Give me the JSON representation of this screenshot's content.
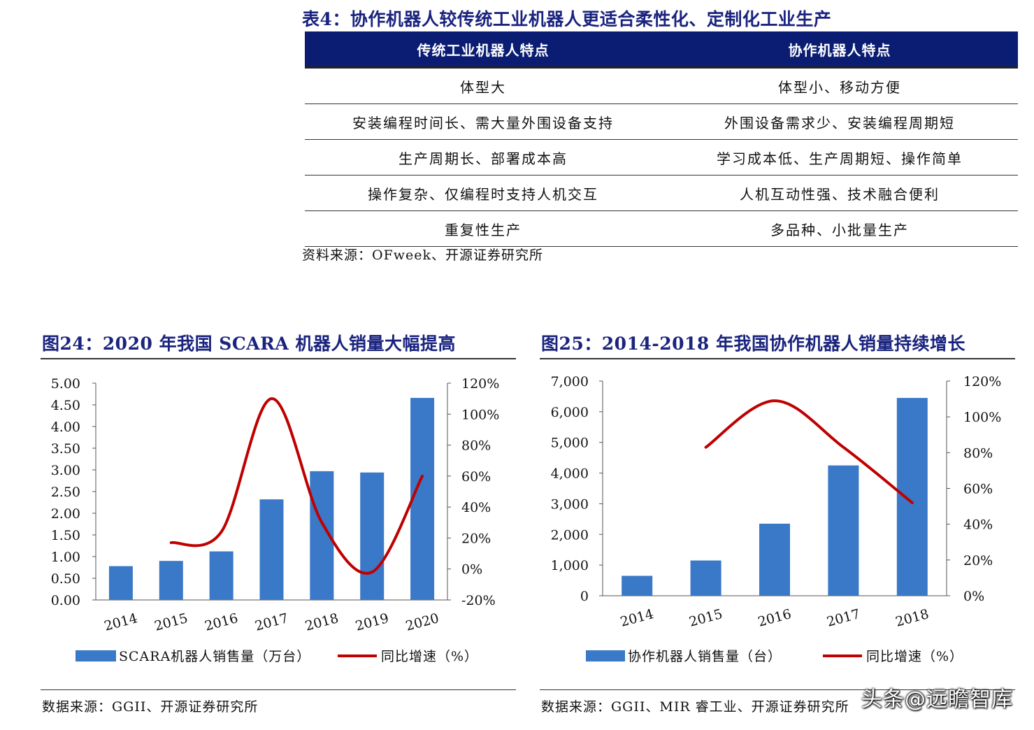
{
  "table4": {
    "title": "表4：协作机器人较传统工业机器人更适合柔性化、定制化工业生产",
    "headers": [
      "传统工业机器人特点",
      "协作机器人特点"
    ],
    "rows": [
      [
        "体型大",
        "体型小、移动方便"
      ],
      [
        "安装编程时间长、需大量外围设备支持",
        "外围设备需求少、安装编程周期短"
      ],
      [
        "生产周期长、部署成本高",
        "学习成本低、生产周期短、操作简单"
      ],
      [
        "操作复杂、仅编程时支持人机交互",
        "人机互动性强、技术融合便利"
      ],
      [
        "重复性生产",
        "多品种、小批量生产"
      ]
    ],
    "source": "资料来源：OFweek、开源证券研究所"
  },
  "fig24": {
    "title": "图24：2020 年我国 SCARA 机器人销量大幅提高",
    "source": "数据来源：GGII、开源证券研究所"
  },
  "fig25": {
    "title": "图25：2014-2018 年我国协作机器人销量持续增长",
    "source": "数据来源：GGII、MIR 睿工业、开源证券研究所"
  },
  "watermark": "头条@远瞻智库",
  "colors": {
    "bar": "#3a78c8",
    "line": "#c00000",
    "header": "#0a1d73",
    "title": "#1a237e"
  },
  "chart_data": [
    {
      "type": "bar",
      "categories": [
        "2014",
        "2015",
        "2016",
        "2017",
        "2018",
        "2019",
        "2020"
      ],
      "series": [
        {
          "name": "SCARA机器人销售量（万台）",
          "type": "bar",
          "axis": "left",
          "values": [
            0.78,
            0.9,
            1.12,
            2.32,
            2.97,
            2.94,
            4.66
          ]
        },
        {
          "name": "同比增速（%）",
          "type": "line",
          "axis": "right",
          "values": [
            null,
            17,
            24,
            110,
            30,
            -2,
            60
          ]
        }
      ],
      "yticks_left": [
        "0.00",
        "0.50",
        "1.00",
        "1.50",
        "2.00",
        "2.50",
        "3.00",
        "3.50",
        "4.00",
        "4.50",
        "5.00"
      ],
      "yticks_right": [
        "-20%",
        "0%",
        "20%",
        "40%",
        "60%",
        "80%",
        "100%",
        "120%"
      ],
      "ylim_left": [
        0,
        5
      ],
      "ylim_right": [
        -20,
        120
      ],
      "legend": "bottom",
      "grid": false
    },
    {
      "type": "bar",
      "categories": [
        "2014",
        "2015",
        "2016",
        "2017",
        "2018"
      ],
      "series": [
        {
          "name": "协作机器人销售量（台）",
          "type": "bar",
          "axis": "left",
          "values": [
            650,
            1150,
            2350,
            4250,
            6450
          ]
        },
        {
          "name": "同比增速（%）",
          "type": "line",
          "axis": "right",
          "values": [
            null,
            83,
            109,
            83,
            52
          ]
        }
      ],
      "yticks_left": [
        "0",
        "1,000",
        "2,000",
        "3,000",
        "4,000",
        "5,000",
        "6,000",
        "7,000"
      ],
      "yticks_right": [
        "0%",
        "20%",
        "40%",
        "60%",
        "80%",
        "100%",
        "120%"
      ],
      "ylim_left": [
        0,
        7000
      ],
      "ylim_right": [
        0,
        120
      ],
      "legend": "bottom",
      "grid": false
    }
  ]
}
